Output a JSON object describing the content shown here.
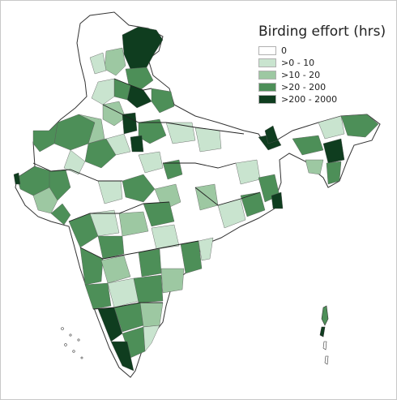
{
  "legend": {
    "title": "Birding effort (hrs)",
    "items": [
      {
        "label": "0",
        "color": "#ffffff"
      },
      {
        "label": ">0 - 10",
        "color": "#c9e4cf"
      },
      {
        "label": ">10 - 20",
        "color": "#9dc8a2"
      },
      {
        "label": ">20 - 200",
        "color": "#4d8f58"
      },
      {
        "label": ">200 - 2000",
        "color": "#0f3d1f"
      }
    ]
  }
}
